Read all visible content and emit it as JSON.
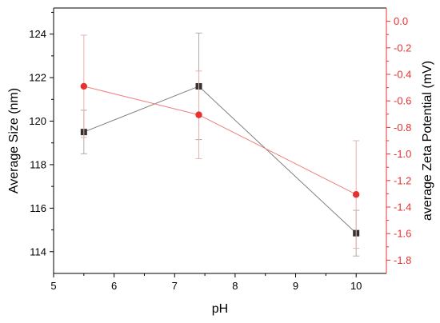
{
  "chart_data": {
    "type": "line",
    "xlabel": "pH",
    "ylabel_left": "Average Size (nm)",
    "ylabel_right": "average Zeta Potential (mV)",
    "xlim": [
      5,
      10.5
    ],
    "ylim_left": [
      113,
      125.2
    ],
    "ylim_right": [
      -1.9,
      0.1
    ],
    "x_ticks": [
      5,
      6,
      7,
      8,
      9,
      10
    ],
    "y_left_ticks": [
      114,
      116,
      118,
      120,
      122,
      124
    ],
    "y_left_tick_labels": [
      "114",
      "116",
      "118",
      "120",
      "122",
      "124"
    ],
    "y_right_ticks": [
      -1.8,
      -1.6,
      -1.4,
      -1.2,
      -1.0,
      -0.8,
      -0.6,
      -0.4,
      -0.2,
      0.0
    ],
    "y_right_tick_labels": [
      "-1.8",
      "-1.6",
      "-1.4",
      "-1.2",
      "-1.0",
      "-0.8",
      "-0.6",
      "-0.4",
      "-0.2",
      "0.0"
    ],
    "grid": false,
    "series": [
      {
        "axis": "left",
        "marker": "square",
        "color": "#333333",
        "line_color": "#808080",
        "errorbar_color": "#b3aaaa",
        "x": [
          5.5,
          7.4,
          10
        ],
        "y": [
          119.5,
          121.6,
          114.85
        ],
        "err": [
          1.0,
          2.45,
          1.05
        ]
      },
      {
        "axis": "right",
        "marker": "circle",
        "color": "#e83030",
        "line_color": "#f08080",
        "errorbar_color": "#e8b0b0",
        "x": [
          5.5,
          7.4,
          10
        ],
        "y": [
          -0.49,
          -0.705,
          -1.305
        ],
        "err": [
          0.385,
          0.33,
          0.405
        ]
      }
    ],
    "axis_colors": {
      "left": "#000000",
      "right": "#e83030"
    }
  }
}
